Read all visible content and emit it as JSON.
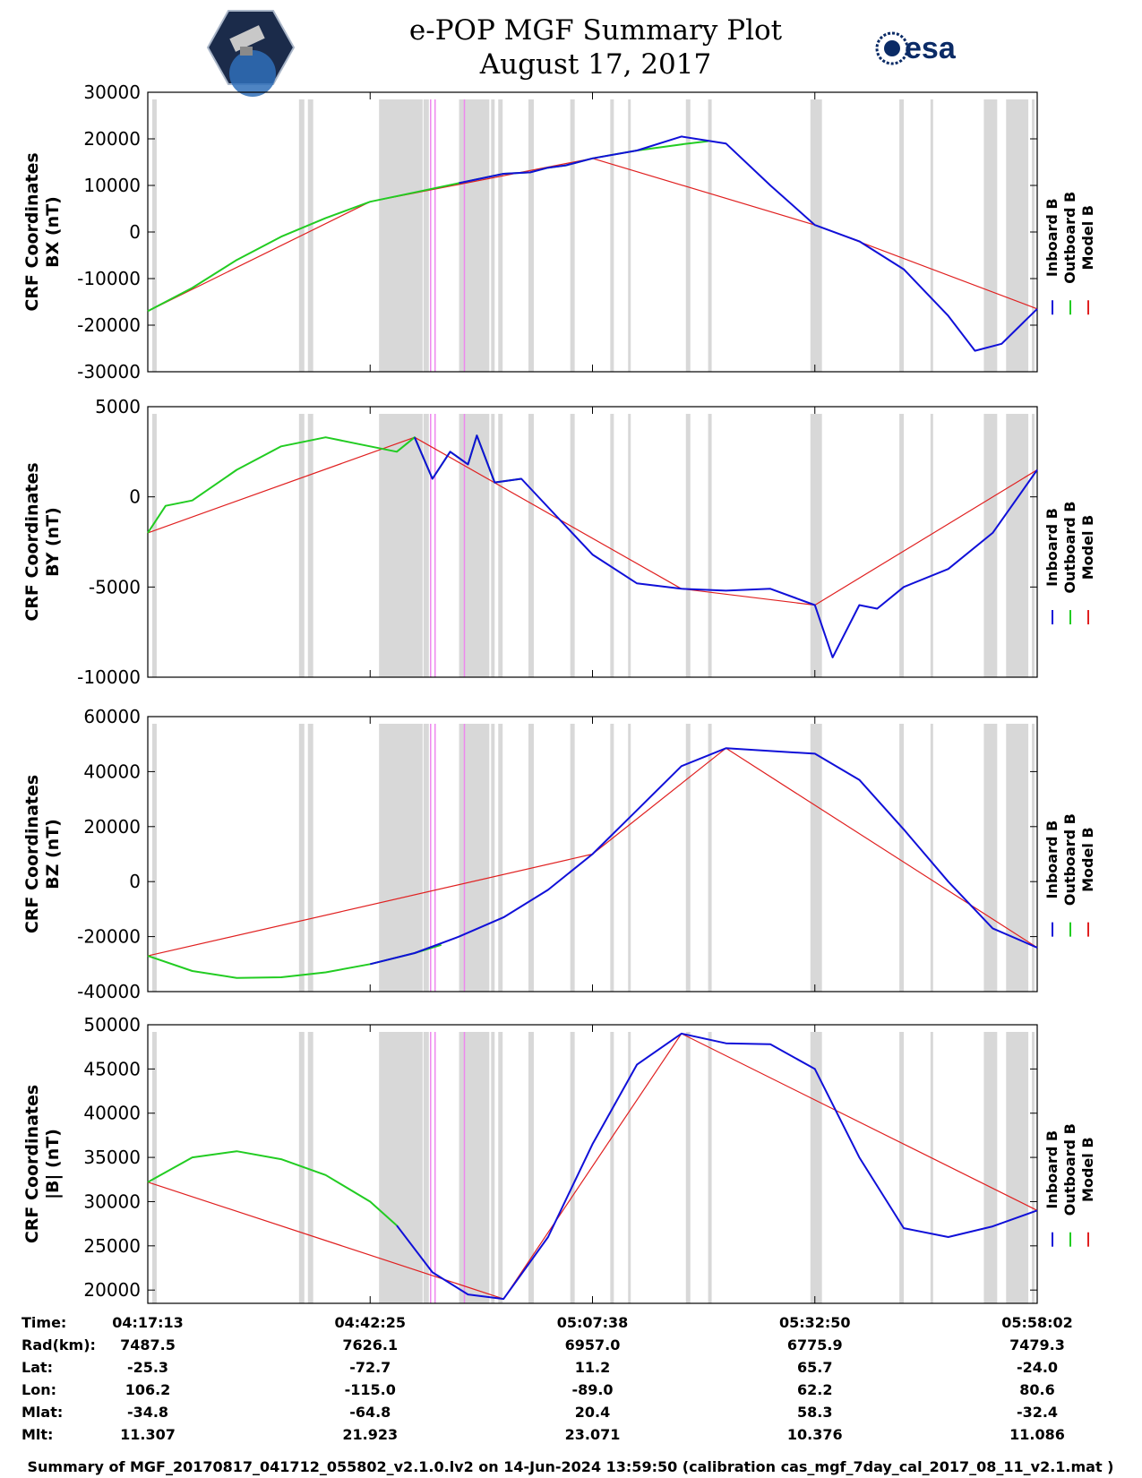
{
  "header": {
    "title": "e-POP MGF Summary Plot",
    "date": "August 17, 2017",
    "logo_left": "CASSIOPE mission patch",
    "logo_right": "esa"
  },
  "legend": {
    "inboard": "Inboard B",
    "outboard": "Outboard B",
    "model": "Model B"
  },
  "colors": {
    "inboard": "#1010d8",
    "outboard": "#22cc22",
    "model": "#e02020",
    "shade": "#d8d8d8",
    "magenta": "#ee88ee"
  },
  "ephemeris": {
    "labels": [
      "Time:",
      "Rad(km):",
      "Lat:",
      "Lon:",
      "Mlat:",
      "Mlt:"
    ],
    "columns": [
      [
        "04:17:13",
        "7487.5",
        "-25.3",
        "106.2",
        "-34.8",
        "11.307"
      ],
      [
        "04:42:25",
        "7626.1",
        "-72.7",
        "-115.0",
        "-64.8",
        "21.923"
      ],
      [
        "05:07:38",
        "6957.0",
        "11.2",
        "-89.0",
        "20.4",
        "23.071"
      ],
      [
        "05:32:50",
        "6775.9",
        "65.7",
        "62.2",
        "58.3",
        "10.376"
      ],
      [
        "05:58:02",
        "7479.3",
        "-24.0",
        "80.6",
        "-32.4",
        "11.086"
      ]
    ]
  },
  "footer": "Summary of MGF_20170817_041712_055802_v2.1.0.lv2 on 14-Jun-2024 13:59:50 (calibration cas_mgf_7day_cal_2017_08_11_v2.1.mat )",
  "chart_data": [
    {
      "type": "line",
      "title": "",
      "ylabel": [
        "CRF Coordinates",
        "BX (nT)"
      ],
      "ylim": [
        -30000,
        30000
      ],
      "yticks": [
        30000,
        20000,
        10000,
        0,
        -10000,
        -20000,
        -30000
      ],
      "xlim": [
        0,
        100
      ],
      "x_note": "x = percent of time span 04:17:13 to 05:58:02",
      "series": [
        {
          "name": "Outboard B",
          "x": [
            0,
            5,
            10,
            15,
            20,
            25,
            30,
            35,
            40,
            43,
            45,
            47,
            48,
            50,
            52,
            55,
            60,
            63
          ],
          "values": [
            -17000,
            -12000,
            -6000,
            -1000,
            3000,
            6500,
            8500,
            10500,
            12500,
            12800,
            13800,
            14300,
            14800,
            15800,
            16500,
            17500,
            18800,
            19500
          ]
        },
        {
          "name": "Inboard B",
          "x": [
            35,
            40,
            43,
            45,
            47,
            48,
            50,
            55,
            60,
            65,
            70,
            75,
            80,
            85,
            90,
            93,
            96,
            100
          ],
          "values": [
            10500,
            12500,
            12800,
            13800,
            14300,
            14800,
            15800,
            17500,
            20500,
            19000,
            10000,
            1500,
            -2000,
            -8000,
            -18000,
            -25500,
            -24000,
            -16500
          ]
        },
        {
          "name": "Model B",
          "x": [
            0,
            25,
            50,
            75,
            100
          ],
          "values": [
            -17000,
            6500,
            15800,
            1500,
            -16500
          ]
        }
      ]
    },
    {
      "type": "line",
      "title": "",
      "ylabel": [
        "CRF Coordinates",
        "BY (nT)"
      ],
      "ylim": [
        -10000,
        5000
      ],
      "yticks": [
        5000,
        0,
        -5000,
        -10000
      ],
      "xlim": [
        0,
        100
      ],
      "series": [
        {
          "name": "Outboard B",
          "x": [
            0,
            2,
            5,
            10,
            15,
            20,
            24,
            28,
            30,
            32,
            34,
            36,
            37,
            39,
            42
          ],
          "values": [
            -2000,
            -500,
            -200,
            1500,
            2800,
            3300,
            2900,
            2500,
            3300,
            1000,
            2500,
            1800,
            3400,
            800,
            1000
          ]
        },
        {
          "name": "Inboard B",
          "x": [
            30,
            32,
            34,
            36,
            37,
            39,
            42,
            50,
            55,
            60,
            65,
            70,
            75,
            77,
            80,
            82,
            85,
            90,
            95,
            100
          ],
          "values": [
            3300,
            1000,
            2500,
            1800,
            3400,
            800,
            1000,
            -3200,
            -4800,
            -5100,
            -5200,
            -5100,
            -6000,
            -8900,
            -6000,
            -6200,
            -5000,
            -4000,
            -2000,
            1500
          ]
        },
        {
          "name": "Model B",
          "x": [
            0,
            30,
            60,
            75,
            100
          ],
          "values": [
            -2000,
            3300,
            -5100,
            -6000,
            1500
          ]
        }
      ]
    },
    {
      "type": "line",
      "title": "",
      "ylabel": [
        "CRF Coordinates",
        "BZ (nT)"
      ],
      "ylim": [
        -40000,
        60000
      ],
      "yticks": [
        60000,
        40000,
        20000,
        0,
        -20000,
        -40000
      ],
      "xlim": [
        0,
        100
      ],
      "series": [
        {
          "name": "Outboard B",
          "x": [
            0,
            5,
            10,
            15,
            20,
            25,
            30,
            33
          ],
          "values": [
            -27000,
            -32500,
            -35000,
            -34800,
            -33000,
            -30000,
            -26000,
            -23000
          ]
        },
        {
          "name": "Inboard B",
          "x": [
            25,
            30,
            35,
            40,
            45,
            50,
            55,
            60,
            65,
            70,
            75,
            80,
            85,
            90,
            95,
            100
          ],
          "values": [
            -30000,
            -26000,
            -20000,
            -13000,
            -3000,
            10000,
            26000,
            42000,
            48500,
            47500,
            46500,
            37000,
            19000,
            0,
            -17000,
            -24000
          ]
        },
        {
          "name": "Model B",
          "x": [
            0,
            50,
            65,
            100
          ],
          "values": [
            -27000,
            10000,
            48500,
            -24000
          ]
        }
      ]
    },
    {
      "type": "line",
      "title": "",
      "ylabel": [
        "CRF Coordinates",
        "|B| (nT)"
      ],
      "ylim": [
        18500,
        50000
      ],
      "yticks": [
        50000,
        45000,
        40000,
        35000,
        30000,
        25000,
        20000
      ],
      "xlim": [
        0,
        100
      ],
      "series": [
        {
          "name": "Outboard B",
          "x": [
            0,
            5,
            10,
            15,
            20,
            25,
            28
          ],
          "values": [
            32200,
            35000,
            35700,
            34800,
            33000,
            30000,
            27300
          ]
        },
        {
          "name": "Inboard B",
          "x": [
            28,
            32,
            36,
            40,
            45,
            50,
            55,
            60,
            65,
            70,
            75,
            80,
            85,
            90,
            95,
            100
          ],
          "values": [
            27300,
            22000,
            19500,
            19000,
            26000,
            36500,
            45500,
            49000,
            47900,
            47800,
            45000,
            35000,
            27000,
            26000,
            27200,
            29000
          ]
        },
        {
          "name": "Model B",
          "x": [
            0,
            40,
            60,
            100
          ],
          "values": [
            32200,
            19000,
            49000,
            29000
          ]
        }
      ]
    }
  ]
}
